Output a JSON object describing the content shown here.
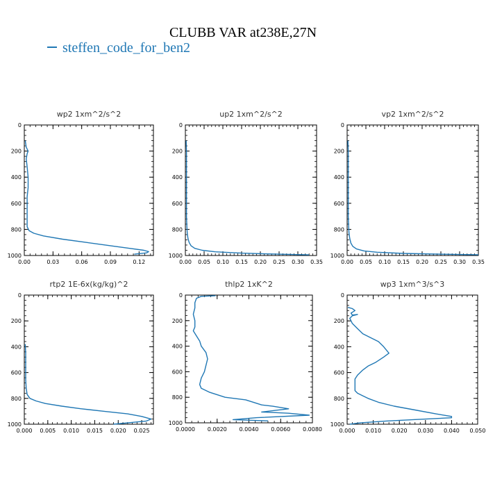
{
  "title": "CLUBB VAR at238E,27N",
  "legend": {
    "label": "steffen_code_for_ben2",
    "color": "#1f77b4"
  },
  "chart_data": [
    {
      "type": "line",
      "title": "wp2  1xm^2/s^2",
      "xlim": [
        0,
        0.135
      ],
      "ylim": [
        1000,
        0
      ],
      "y_inverted": true,
      "xticks": [
        0,
        0.03,
        0.06,
        0.09,
        0.12
      ],
      "xtick_labels": [
        "0.00",
        "0.03",
        "0.06",
        "0.09",
        "0.12"
      ],
      "yticks": [
        0,
        200,
        400,
        600,
        800,
        1000
      ],
      "ytick_labels": [
        "0",
        "200",
        "400",
        "600",
        "800",
        "1000"
      ],
      "series": [
        {
          "x": [
            0.001,
            0.002,
            0.004,
            0.003,
            0.002,
            0.003,
            0.004,
            0.004,
            0.003,
            0.003,
            0.003,
            0.003,
            0.005,
            0.01,
            0.02,
            0.04,
            0.065,
            0.09,
            0.11,
            0.125,
            0.13,
            0.128,
            0.115
          ],
          "y": [
            120,
            170,
            200,
            220,
            260,
            320,
            400,
            480,
            550,
            620,
            700,
            780,
            810,
            830,
            850,
            875,
            900,
            925,
            945,
            960,
            970,
            980,
            990
          ]
        }
      ]
    },
    {
      "type": "line",
      "title": "up2  1xm^2/s^2",
      "xlim": [
        0,
        0.35
      ],
      "ylim": [
        1000,
        0
      ],
      "y_inverted": true,
      "xticks": [
        0,
        0.05,
        0.1,
        0.15,
        0.2,
        0.25,
        0.3,
        0.35
      ],
      "xtick_labels": [
        "0.00",
        "0.05",
        "0.10",
        "0.15",
        "0.20",
        "0.25",
        "0.30",
        "0.35"
      ],
      "yticks": [
        0,
        200,
        400,
        600,
        800,
        1000
      ],
      "ytick_labels": [
        "0",
        "200",
        "400",
        "600",
        "800",
        "1000"
      ],
      "series": [
        {
          "x": [
            0.002,
            0.003,
            0.003,
            0.003,
            0.003,
            0.004,
            0.005,
            0.007,
            0.01,
            0.015,
            0.025,
            0.045,
            0.08,
            0.15,
            0.25,
            0.33
          ],
          "y": [
            120,
            200,
            400,
            600,
            700,
            780,
            830,
            870,
            900,
            925,
            945,
            960,
            972,
            982,
            990,
            995
          ]
        }
      ]
    },
    {
      "type": "line",
      "title": "vp2  1xm^2/s^2",
      "xlim": [
        0,
        0.35
      ],
      "ylim": [
        1000,
        0
      ],
      "y_inverted": true,
      "xticks": [
        0,
        0.05,
        0.1,
        0.15,
        0.2,
        0.25,
        0.3,
        0.35
      ],
      "xtick_labels": [
        "0.00",
        "0.05",
        "0.10",
        "0.15",
        "0.20",
        "0.25",
        "0.30",
        "0.35"
      ],
      "yticks": [
        0,
        200,
        400,
        600,
        800,
        1000
      ],
      "ytick_labels": [
        "0",
        "200",
        "400",
        "600",
        "800",
        "1000"
      ],
      "series": [
        {
          "x": [
            0.002,
            0.003,
            0.003,
            0.003,
            0.003,
            0.004,
            0.005,
            0.007,
            0.01,
            0.015,
            0.025,
            0.045,
            0.08,
            0.15,
            0.25,
            0.35
          ],
          "y": [
            120,
            200,
            400,
            600,
            700,
            780,
            830,
            870,
            905,
            930,
            950,
            965,
            975,
            984,
            990,
            994
          ]
        }
      ]
    },
    {
      "type": "line",
      "title": "rtp2  1E-6x(kg/kg)^2",
      "xlim": [
        0,
        0.0275
      ],
      "ylim": [
        1000,
        0
      ],
      "y_inverted": true,
      "xticks": [
        0,
        0.005,
        0.01,
        0.015,
        0.02,
        0.025
      ],
      "xtick_labels": [
        "0.000",
        "0.005",
        "0.010",
        "0.015",
        "0.020",
        "0.025"
      ],
      "yticks": [
        0,
        200,
        400,
        600,
        800,
        1000
      ],
      "ytick_labels": [
        "0",
        "200",
        "400",
        "600",
        "800",
        "1000"
      ],
      "series": [
        {
          "x": [
            0.0002,
            0.0003,
            0.0003,
            0.0003,
            0.0004,
            0.0006,
            0.0012,
            0.0025,
            0.0045,
            0.008,
            0.012,
            0.017,
            0.022,
            0.025,
            0.027,
            0.026,
            0.022,
            0.019
          ],
          "y": [
            380,
            450,
            550,
            650,
            720,
            770,
            800,
            820,
            840,
            860,
            880,
            900,
            920,
            940,
            960,
            975,
            990,
            1000
          ]
        }
      ]
    },
    {
      "type": "line",
      "title": "thlp2  1xK^2",
      "xlim": [
        0,
        0.008
      ],
      "ylim": [
        1000,
        0
      ],
      "y_inverted": true,
      "xticks": [
        0,
        0.002,
        0.004,
        0.006,
        0.008
      ],
      "xtick_labels": [
        "0.0000",
        "0.0020",
        "0.0040",
        "0.0060",
        "0.0080"
      ],
      "yticks": [
        0,
        200,
        400,
        600,
        800,
        1000
      ],
      "ytick_labels": [
        "0",
        "200",
        "400",
        "600",
        "800",
        "1000"
      ],
      "series": [
        {
          "x": [
            0.0019,
            0.001,
            0.0007,
            0.0006,
            0.0006,
            0.0005,
            0.0006,
            0.0006,
            0.0005,
            0.0007,
            0.0009,
            0.001,
            0.0013,
            0.0014,
            0.0013,
            0.0012,
            0.001,
            0.0009,
            0.001,
            0.0015,
            0.0025,
            0.0038,
            0.0043,
            0.0048,
            0.0055,
            0.0065,
            0.0048,
            0.0065,
            0.0078,
            0.0045,
            0.003,
            0.0052
          ],
          "y": [
            5,
            10,
            25,
            60,
            100,
            150,
            200,
            250,
            280,
            320,
            360,
            400,
            450,
            500,
            550,
            600,
            650,
            700,
            730,
            760,
            800,
            820,
            840,
            860,
            870,
            890,
            915,
            925,
            940,
            960,
            975,
            985
          ]
        }
      ]
    },
    {
      "type": "line",
      "title": "wp3  1xm^3/s^3",
      "xlim": [
        0,
        0.05
      ],
      "ylim": [
        1000,
        0
      ],
      "y_inverted": true,
      "xticks": [
        0,
        0.01,
        0.02,
        0.03,
        0.04,
        0.05
      ],
      "xtick_labels": [
        "0.000",
        "0.010",
        "0.020",
        "0.030",
        "0.040",
        "0.050"
      ],
      "yticks": [
        0,
        200,
        400,
        600,
        800,
        1000
      ],
      "ytick_labels": [
        "0",
        "200",
        "400",
        "600",
        "800",
        "1000"
      ],
      "series": [
        {
          "x": [
            0.0003,
            0.002,
            0.003,
            0.0015,
            0.002,
            0.004,
            0.002,
            0.001,
            0.002,
            0.004,
            0.006,
            0.009,
            0.012,
            0.014,
            0.016,
            0.014,
            0.011,
            0.008,
            0.006,
            0.004,
            0.003,
            0.003,
            0.003,
            0.004,
            0.006,
            0.008,
            0.012,
            0.018,
            0.026,
            0.034,
            0.04,
            0.04,
            0.03,
            0.015,
            0.005,
            0.001
          ],
          "y": [
            95,
            105,
            120,
            140,
            155,
            150,
            160,
            180,
            220,
            260,
            300,
            330,
            360,
            400,
            450,
            480,
            520,
            550,
            580,
            620,
            650,
            700,
            740,
            760,
            780,
            800,
            830,
            860,
            890,
            920,
            940,
            950,
            960,
            975,
            990,
            1000
          ]
        }
      ]
    }
  ]
}
